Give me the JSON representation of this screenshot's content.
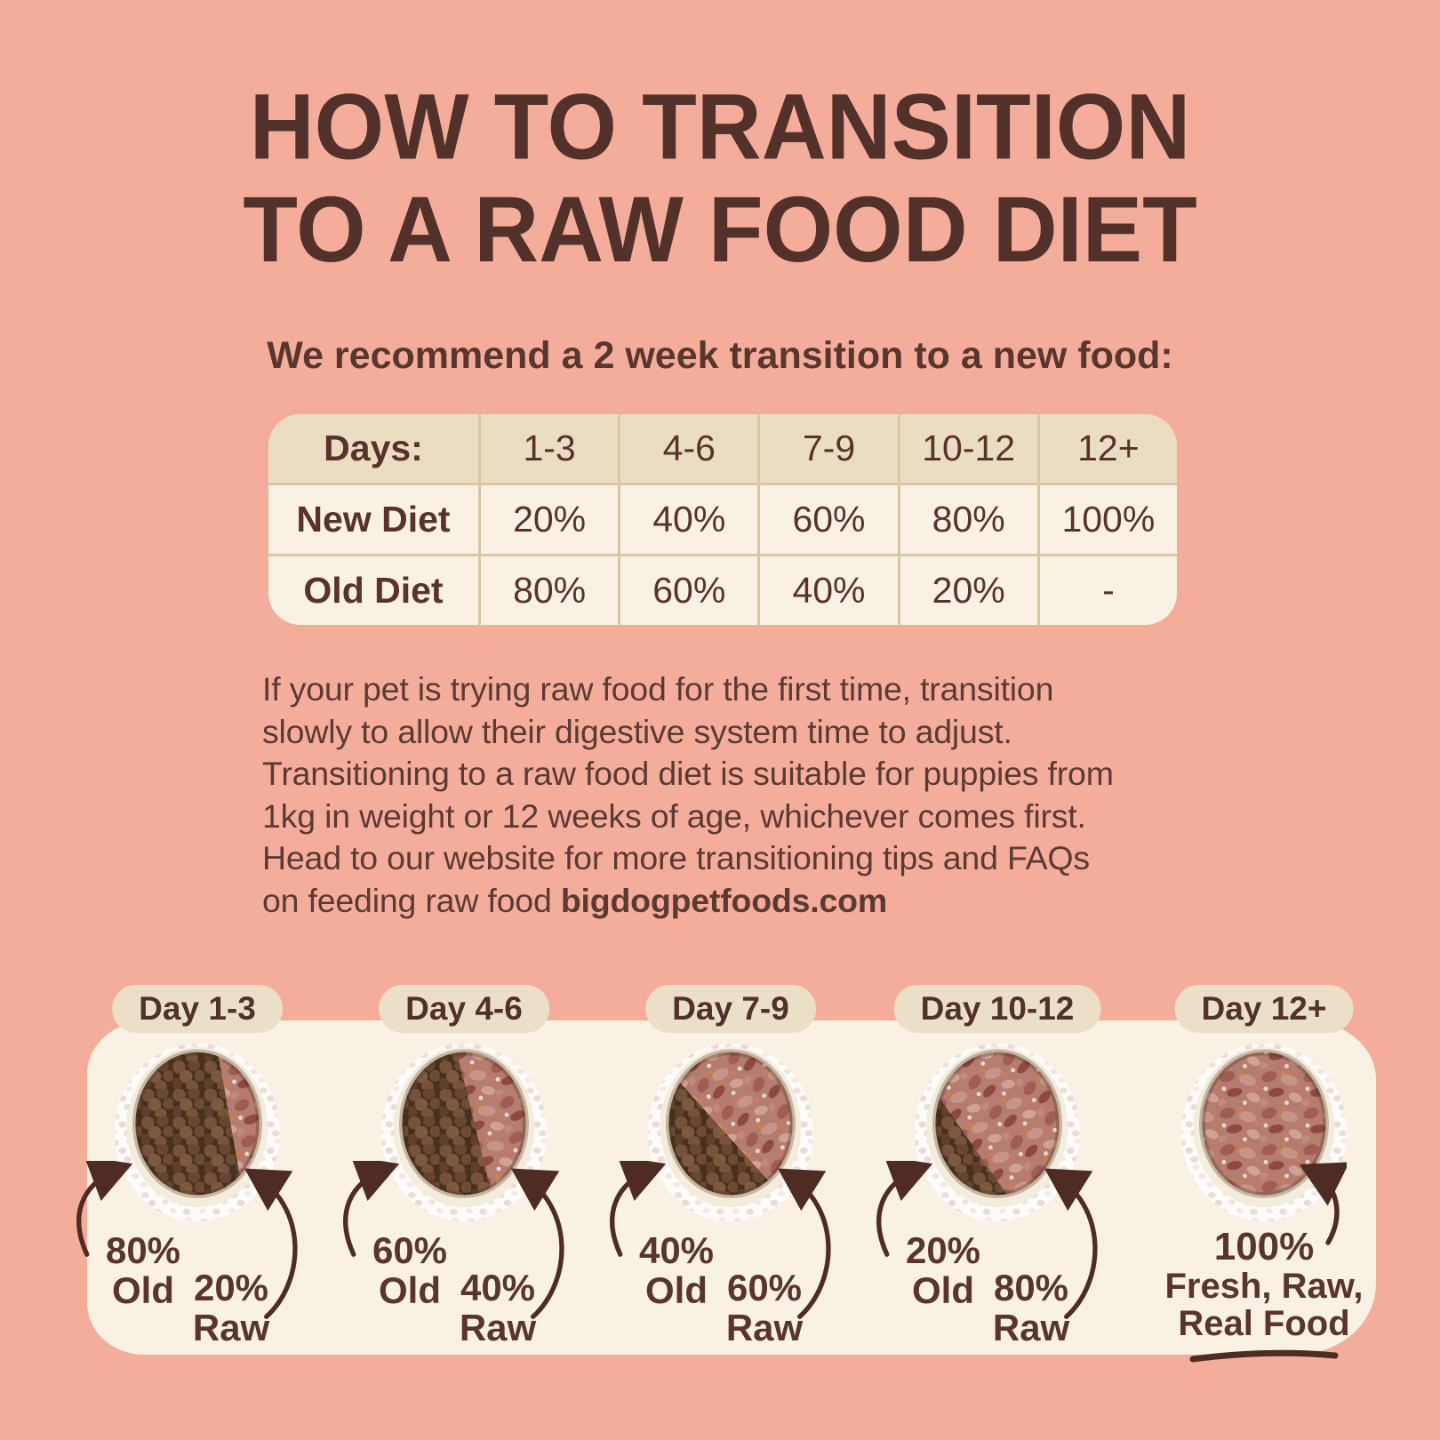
{
  "colors": {
    "background": "#f5ad9b",
    "ink": "#5a362f",
    "title_ink": "#53312b",
    "panel_cream": "#f8f1e4",
    "pill_beige": "#ebdfc8",
    "table_header_bg": "#eaddc2",
    "table_body_bg": "#f8f1e4",
    "table_divider": "#d9c7a4",
    "arrow_brown": "#4e2c23"
  },
  "title": {
    "line1": "HOW TO TRANSITION",
    "line2": "TO A RAW FOOD DIET"
  },
  "subtitle": "We recommend a 2 week transition to a new food:",
  "table": {
    "header": [
      "Days:",
      "1-3",
      "4-6",
      "7-9",
      "10-12",
      "12+"
    ],
    "rows": [
      {
        "label": "New Diet",
        "values": [
          "20%",
          "40%",
          "60%",
          "80%",
          "100%"
        ]
      },
      {
        "label": "Old Diet",
        "values": [
          "80%",
          "60%",
          "40%",
          "20%",
          "-"
        ]
      }
    ]
  },
  "paragraph": {
    "lines": [
      "If your pet is trying raw food for the first time, transition",
      "slowly to allow their digestive system time to adjust.",
      "Transitioning to a raw food diet is suitable for puppies from",
      "1kg in weight or 12 weeks of age, whichever comes first.",
      "Head to our website for more transitioning tips and  FAQs"
    ],
    "last_line": "on feeding raw food ",
    "website": "bigdogpetfoods.com"
  },
  "stages": [
    {
      "day": "Day 1-3",
      "old_pct": "80%",
      "old_label": "Old",
      "raw_pct": "20%",
      "raw_label": "Raw"
    },
    {
      "day": "Day 4-6",
      "old_pct": "60%",
      "old_label": "Old",
      "raw_pct": "40%",
      "raw_label": "Raw"
    },
    {
      "day": "Day 7-9",
      "old_pct": "40%",
      "old_label": "Old",
      "raw_pct": "60%",
      "raw_label": "Raw"
    },
    {
      "day": "Day 10-12",
      "old_pct": "20%",
      "old_label": "Old",
      "raw_pct": "80%",
      "raw_label": "Raw"
    },
    {
      "day": "Day 12+",
      "final_lines": [
        "100%",
        "Fresh, Raw,",
        "Real Food"
      ]
    }
  ]
}
